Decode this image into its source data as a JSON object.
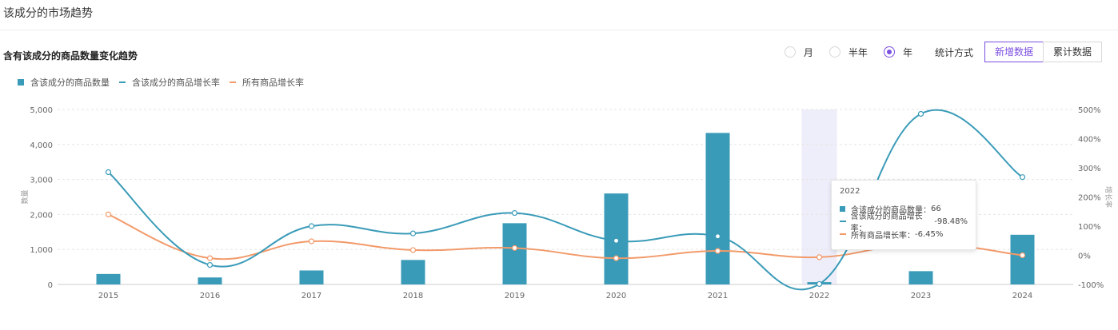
{
  "page": {
    "title": "该成分的市场趋势"
  },
  "chart_title": "含有该成分的商品数量变化趋势",
  "controls": {
    "period_options": [
      {
        "label": "月",
        "checked": false
      },
      {
        "label": "半年",
        "checked": false
      },
      {
        "label": "年",
        "checked": true
      }
    ],
    "stat_label": "统计方式",
    "stat_buttons": [
      {
        "label": "新增数据",
        "active": true
      },
      {
        "label": "累计数据",
        "active": false
      }
    ]
  },
  "colors": {
    "bar": "#3a9bb8",
    "line1": "#3a9bb8",
    "line2": "#f29a6a",
    "accent": "#7b4fe0"
  },
  "chart_data": {
    "type": "bar",
    "categories": [
      "2015",
      "2016",
      "2017",
      "2018",
      "2019",
      "2020",
      "2021",
      "2022",
      "2023",
      "2024"
    ],
    "series": [
      {
        "name": "含该成分的商品数量",
        "type": "bar",
        "axis": "left",
        "values": [
          300,
          200,
          400,
          700,
          1750,
          2600,
          4330,
          66,
          380,
          1420
        ]
      },
      {
        "name": "含该成分的商品增长率",
        "type": "line",
        "axis": "right",
        "values": [
          285,
          -33,
          100,
          75,
          145,
          50,
          65,
          -98.48,
          485,
          268
        ]
      },
      {
        "name": "所有商品增长率",
        "type": "line",
        "axis": "right",
        "values": [
          140,
          -10,
          48,
          18,
          25,
          -10,
          15,
          -6.45,
          40,
          0
        ]
      }
    ],
    "y_left": {
      "label": "数量",
      "min": 0,
      "max": 5000,
      "ticks": [
        0,
        1000,
        2000,
        3000,
        4000,
        5000
      ],
      "tick_labels": [
        "0",
        "1,000",
        "2,000",
        "3,000",
        "4,000",
        "5,000"
      ]
    },
    "y_right": {
      "label": "增长率",
      "min": -100,
      "max": 500,
      "ticks": [
        -100,
        0,
        100,
        200,
        300,
        400,
        500
      ],
      "tick_labels": [
        "-100%",
        "0%",
        "100%",
        "200%",
        "300%",
        "400%",
        "500%"
      ]
    },
    "highlight_category": "2022",
    "grid": true,
    "legend": "top-left"
  },
  "tooltip": {
    "title": "2022",
    "rows": [
      {
        "label": "含该成分的商品数量：",
        "value": "66"
      },
      {
        "label": "含该成分的商品增长率：",
        "value": "-98.48%"
      },
      {
        "label": "所有商品增长率：",
        "value": "-6.45%"
      }
    ]
  }
}
